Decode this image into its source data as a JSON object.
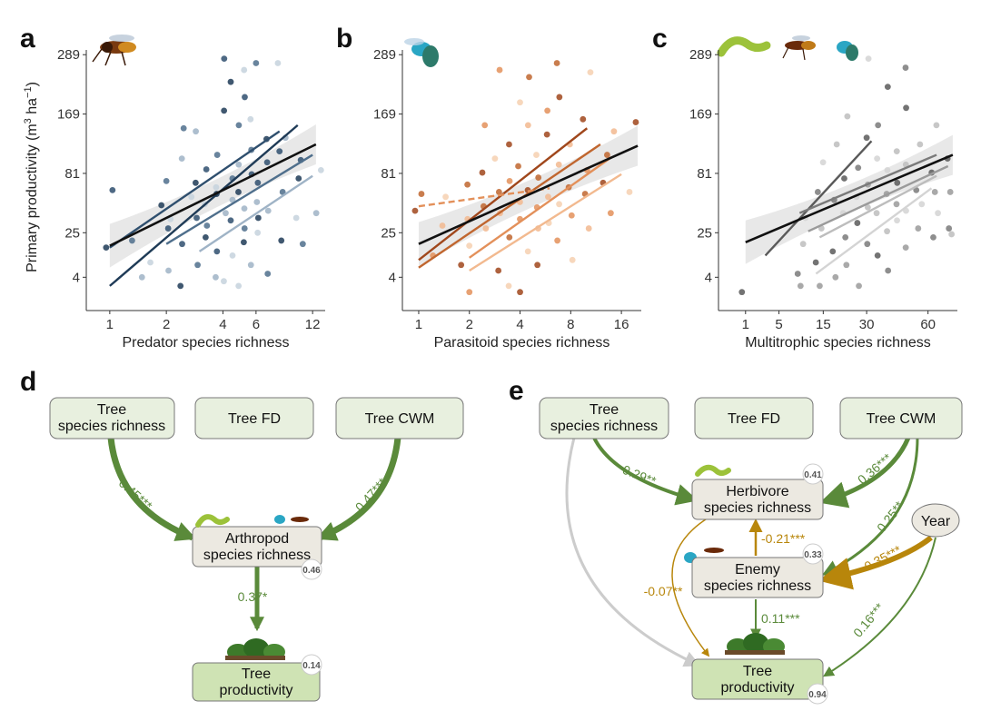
{
  "colors": {
    "predator": [
      "#1f3b57",
      "#2f4f6e",
      "#4f6f8c",
      "#9fb3c6",
      "#c6d2dd"
    ],
    "parasitoid": [
      "#a0471c",
      "#c0662f",
      "#e3905a",
      "#f2b98f",
      "#f6d0b0"
    ],
    "multitrophic": [
      "#5a5a5a",
      "#7a7a7a",
      "#9a9a9a",
      "#bdbdbd",
      "#d4d4d4"
    ],
    "green_arrow": "#5a8a3a",
    "gold_arrow": "#b8860b",
    "grey_arrow": "#cccccc",
    "box_fill_green": "#e8f0df",
    "box_fill_beige": "#ece9e1"
  },
  "chart_data": [
    {
      "panel": "a",
      "type": "scatter",
      "xlabel": "Predator species richness",
      "ylabel": "Primary productivity (m³ ha⁻¹)",
      "xscale": "log",
      "yscale": "sqrt",
      "x_ticks": [
        1,
        2,
        4,
        6,
        12
      ],
      "y_ticks": [
        4,
        25,
        81,
        169,
        289
      ],
      "xlim": [
        0.75,
        14
      ],
      "ylim": [
        0,
        300
      ],
      "overall_fit": {
        "x": [
          1,
          12.5
        ],
        "y": [
          17,
          120
        ]
      },
      "year_fits": [
        {
          "x": [
            1,
            10
          ],
          "y": [
            2,
            150
          ]
        },
        {
          "x": [
            1,
            8
          ],
          "y": [
            16,
            140
          ]
        },
        {
          "x": [
            2,
            12
          ],
          "y": [
            18,
            105
          ]
        },
        {
          "x": [
            3,
            12
          ],
          "y": [
            14,
            78
          ]
        }
      ],
      "points": [
        [
          1,
          16
        ],
        [
          1,
          62
        ],
        [
          1.3,
          20
        ],
        [
          1.5,
          4
        ],
        [
          1.7,
          9
        ],
        [
          1.8,
          47
        ],
        [
          2,
          28
        ],
        [
          2,
          72
        ],
        [
          2.1,
          6
        ],
        [
          2.2,
          35
        ],
        [
          2.3,
          2
        ],
        [
          2.4,
          18
        ],
        [
          2.5,
          145
        ],
        [
          2.5,
          100
        ],
        [
          2.6,
          55
        ],
        [
          2.8,
          70
        ],
        [
          2.9,
          36
        ],
        [
          3,
          8
        ],
        [
          3,
          140
        ],
        [
          3.1,
          48
        ],
        [
          3.2,
          22
        ],
        [
          3.3,
          86
        ],
        [
          3.4,
          30
        ],
        [
          3.5,
          4
        ],
        [
          3.6,
          65
        ],
        [
          3.7,
          58
        ],
        [
          3.8,
          14
        ],
        [
          3.9,
          105
        ],
        [
          4,
          40
        ],
        [
          4,
          3
        ],
        [
          4.1,
          175
        ],
        [
          4.2,
          280
        ],
        [
          4.3,
          75
        ],
        [
          4.4,
          52
        ],
        [
          4.5,
          12
        ],
        [
          4.5,
          230
        ],
        [
          4.6,
          34
        ],
        [
          4.7,
          150
        ],
        [
          4.8,
          92
        ],
        [
          4.9,
          2
        ],
        [
          5,
          60
        ],
        [
          5,
          200
        ],
        [
          5.1,
          28
        ],
        [
          5.2,
          44
        ],
        [
          5.3,
          255
        ],
        [
          5.4,
          19
        ],
        [
          5.5,
          80
        ],
        [
          5.6,
          112
        ],
        [
          5.7,
          8
        ],
        [
          5.8,
          160
        ],
        [
          5.9,
          36
        ],
        [
          6,
          70
        ],
        [
          6,
          270
        ],
        [
          6.2,
          50
        ],
        [
          6.4,
          25
        ],
        [
          6.6,
          128
        ],
        [
          6.8,
          95
        ],
        [
          7,
          5
        ],
        [
          7.2,
          42
        ],
        [
          7.5,
          270
        ],
        [
          8,
          20
        ],
        [
          8,
          110
        ],
        [
          8.5,
          60
        ],
        [
          9,
          130
        ],
        [
          9.5,
          36
        ],
        [
          10,
          75
        ],
        [
          10.5,
          98
        ],
        [
          11,
          18
        ],
        [
          12,
          40
        ],
        [
          13,
          85
        ]
      ]
    },
    {
      "panel": "b",
      "type": "scatter",
      "xlabel": "Parasitoid species richness",
      "xscale": "log",
      "yscale": "sqrt",
      "x_ticks": [
        1,
        2,
        4,
        8,
        16
      ],
      "y_ticks": [
        4,
        25,
        81,
        169,
        289
      ],
      "xlim": [
        0.8,
        21
      ],
      "ylim": [
        0,
        300
      ],
      "overall_fit": {
        "x": [
          1,
          20
        ],
        "y": [
          18,
          118
        ]
      },
      "year_fits": [
        {
          "x": [
            1,
            10
          ],
          "y": [
            10,
            145
          ]
        },
        {
          "x": [
            1,
            12
          ],
          "y": [
            7,
            120
          ]
        },
        {
          "x": [
            2,
            14
          ],
          "y": [
            11,
            102
          ]
        },
        {
          "x": [
            2,
            16
          ],
          "y": [
            6,
            80
          ]
        }
      ],
      "dashed_fit": {
        "x": [
          1,
          6
        ],
        "y": [
          46,
          64
        ]
      },
      "points": [
        [
          1,
          42
        ],
        [
          1,
          58
        ],
        [
          1.2,
          12
        ],
        [
          1.4,
          30
        ],
        [
          1.5,
          55
        ],
        [
          1.7,
          8
        ],
        [
          1.9,
          68
        ],
        [
          2,
          1
        ],
        [
          2,
          35
        ],
        [
          2.1,
          17
        ],
        [
          2.3,
          82
        ],
        [
          2.4,
          46
        ],
        [
          2.5,
          150
        ],
        [
          2.6,
          28
        ],
        [
          2.7,
          100
        ],
        [
          2.9,
          6
        ],
        [
          3,
          60
        ],
        [
          3.1,
          255
        ],
        [
          3.2,
          40
        ],
        [
          3.3,
          2
        ],
        [
          3.4,
          120
        ],
        [
          3.5,
          22
        ],
        [
          3.6,
          72
        ],
        [
          3.8,
          50
        ],
        [
          3.9,
          190
        ],
        [
          4,
          1
        ],
        [
          4,
          90
        ],
        [
          4.2,
          35
        ],
        [
          4.3,
          150
        ],
        [
          4.4,
          14
        ],
        [
          4.5,
          62
        ],
        [
          4.7,
          240
        ],
        [
          4.8,
          45
        ],
        [
          5,
          28
        ],
        [
          5,
          105
        ],
        [
          5.2,
          8
        ],
        [
          5.4,
          76
        ],
        [
          5.6,
          175
        ],
        [
          5.8,
          55
        ],
        [
          6,
          32
        ],
        [
          6,
          135
        ],
        [
          6.3,
          270
        ],
        [
          6.5,
          20
        ],
        [
          6.8,
          92
        ],
        [
          7,
          48
        ],
        [
          7.2,
          200
        ],
        [
          7.5,
          65
        ],
        [
          8,
          38
        ],
        [
          8,
          120
        ],
        [
          8.5,
          10
        ],
        [
          9,
          160
        ],
        [
          9.5,
          58
        ],
        [
          10,
          85
        ],
        [
          10.5,
          28
        ],
        [
          11,
          250
        ],
        [
          12,
          70
        ],
        [
          13,
          105
        ],
        [
          14,
          40
        ],
        [
          15,
          140
        ],
        [
          17,
          60
        ],
        [
          19,
          155
        ]
      ]
    },
    {
      "panel": "c",
      "type": "scatter",
      "xlabel": "Multitrophic species richness",
      "xscale": "sqrt",
      "yscale": "sqrt",
      "x_ticks": [
        1,
        5,
        15,
        30,
        60
      ],
      "y_ticks": [
        4,
        25,
        81,
        169,
        289
      ],
      "xlim": [
        0,
        78
      ],
      "ylim": [
        0,
        300
      ],
      "overall_fit": {
        "x": [
          1,
          75
        ],
        "y": [
          19,
          105
        ]
      },
      "year_fits": [
        {
          "x": [
            3,
            32
          ],
          "y": [
            12,
            125
          ]
        },
        {
          "x": [
            9,
            65
          ],
          "y": [
            40,
            105
          ]
        },
        {
          "x": [
            11,
            72
          ],
          "y": [
            26,
            90
          ]
        },
        {
          "x": [
            14,
            65
          ],
          "y": [
            22,
            78
          ]
        },
        {
          "x": [
            13,
            62
          ],
          "y": [
            5,
            64
          ]
        }
      ],
      "points": [
        [
          1,
          1
        ],
        [
          8,
          5
        ],
        [
          9,
          2
        ],
        [
          10,
          18
        ],
        [
          11,
          36
        ],
        [
          12,
          9
        ],
        [
          13,
          60
        ],
        [
          14,
          2
        ],
        [
          15,
          28
        ],
        [
          16,
          95
        ],
        [
          17,
          14
        ],
        [
          18,
          52
        ],
        [
          19,
          4
        ],
        [
          20,
          120
        ],
        [
          20,
          40
        ],
        [
          21,
          75
        ],
        [
          22,
          22
        ],
        [
          23,
          8
        ],
        [
          24,
          165
        ],
        [
          25,
          55
        ],
        [
          26,
          32
        ],
        [
          27,
          88
        ],
        [
          28,
          2
        ],
        [
          29,
          45
        ],
        [
          30,
          280
        ],
        [
          30,
          130
        ],
        [
          31,
          18
        ],
        [
          32,
          68
        ],
        [
          33,
          40
        ],
        [
          34,
          100
        ],
        [
          35,
          12
        ],
        [
          36,
          150
        ],
        [
          37,
          58
        ],
        [
          38,
          26
        ],
        [
          39,
          85
        ],
        [
          40,
          220
        ],
        [
          41,
          6
        ],
        [
          42,
          48
        ],
        [
          43,
          110
        ],
        [
          44,
          34
        ],
        [
          45,
          70
        ],
        [
          46,
          260
        ],
        [
          47,
          16
        ],
        [
          48,
          92
        ],
        [
          49,
          42
        ],
        [
          50,
          180
        ],
        [
          52,
          62
        ],
        [
          54,
          28
        ],
        [
          56,
          120
        ],
        [
          58,
          48
        ],
        [
          60,
          82
        ],
        [
          62,
          22
        ],
        [
          64,
          60
        ],
        [
          66,
          150
        ],
        [
          68,
          40
        ],
        [
          70,
          100
        ],
        [
          72,
          28
        ],
        [
          74,
          60
        ],
        [
          76,
          24
        ]
      ]
    }
  ],
  "panels": {
    "a": {
      "label": "a"
    },
    "b": {
      "label": "b"
    },
    "c": {
      "label": "c"
    },
    "d": {
      "label": "d"
    },
    "e": {
      "label": "e"
    }
  },
  "ylabel_text": "Primary productivity (m",
  "ylabel_sup": "3",
  "ylabel_mid": " ha",
  "ylabel_sup2": "−1",
  "ylabel_end": ")",
  "diagram_d": {
    "tree_sr": [
      "Tree",
      "species richness"
    ],
    "tree_fd": "Tree FD",
    "tree_cwm": "Tree CWM",
    "arthropod": [
      "Arthropod",
      "species richness"
    ],
    "arthropod_r2": "0.46",
    "tree_prod": [
      "Tree",
      "productivity"
    ],
    "tree_prod_r2": "0.14",
    "coef_sr": "0.45***",
    "coef_cwm": "0.47***",
    "coef_prod": "0.37*"
  },
  "diagram_e": {
    "tree_sr": [
      "Tree",
      "species richness"
    ],
    "tree_fd": "Tree FD",
    "tree_cwm": "Tree CWM",
    "herbivore": [
      "Herbivore",
      "species richness"
    ],
    "herbivore_r2": "0.41",
    "enemy": [
      "Enemy",
      "species richness"
    ],
    "enemy_r2": "0.33",
    "year": "Year",
    "tree_prod": [
      "Tree",
      "productivity"
    ],
    "tree_prod_r2": "0.94",
    "coef_sr_herb": "0.29**",
    "coef_cwm_herb": "0.36***",
    "coef_cwm_enemy": "0.25**",
    "coef_year_enemy": "-0.35***",
    "coef_year_prod": "0.16***",
    "coef_enemy_herb": "-0.21***",
    "coef_herb_prod": "-0.07**",
    "coef_enemy_prod": "0.11***"
  }
}
